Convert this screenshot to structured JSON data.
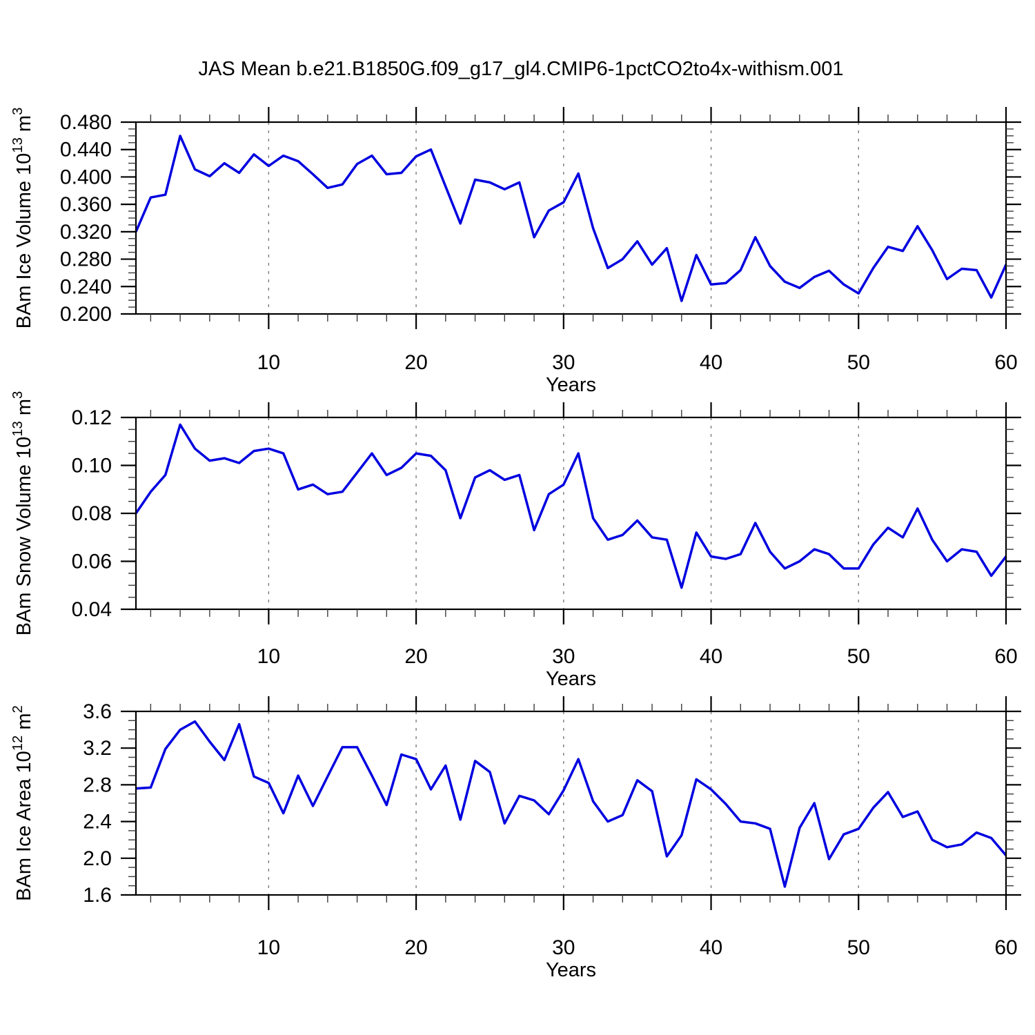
{
  "title": "JAS Mean b.e21.B1850G.f09_g17_gl4.CMIP6-1pctCO2to4x-withism.001",
  "style": {
    "line_color": "#0000e0",
    "grid_color": "#7a7a7a",
    "axis_color": "#000000",
    "minor_tick_color": "#3a3a3a"
  },
  "years": [
    1,
    2,
    3,
    4,
    5,
    6,
    7,
    8,
    9,
    10,
    11,
    12,
    13,
    14,
    15,
    16,
    17,
    18,
    19,
    20,
    21,
    22,
    23,
    24,
    25,
    26,
    27,
    28,
    29,
    30,
    31,
    32,
    33,
    34,
    35,
    36,
    37,
    38,
    39,
    40,
    41,
    42,
    43,
    44,
    45,
    46,
    47,
    48,
    49,
    50,
    51,
    52,
    53,
    54,
    55,
    56,
    57,
    58,
    59,
    60
  ],
  "chart_data": [
    {
      "type": "line",
      "name": "ice-volume",
      "ylabel_parts": [
        {
          "t": "BAm Ice Volume 10",
          "sup": false
        },
        {
          "t": "13",
          "sup": true
        },
        {
          "t": " m",
          "sup": false
        },
        {
          "t": "3",
          "sup": true
        }
      ],
      "xlabel": "Years",
      "xlim": [
        1,
        60
      ],
      "ylim": [
        0.2,
        0.48
      ],
      "y_major_step": 0.04,
      "y_minor_step": 0.01,
      "y_decimals": 3,
      "x_major_ticks": [
        10,
        20,
        30,
        40,
        50,
        60
      ],
      "x_minor_step": 2,
      "grid_x": [
        10,
        20,
        30,
        40,
        50
      ],
      "legend": "none",
      "grid": "vertical-dashed",
      "values": [
        0.32,
        0.37,
        0.374,
        0.46,
        0.411,
        0.401,
        0.42,
        0.406,
        0.433,
        0.416,
        0.431,
        0.423,
        0.404,
        0.384,
        0.389,
        0.419,
        0.431,
        0.404,
        0.406,
        0.43,
        0.44,
        0.386,
        0.332,
        0.396,
        0.392,
        0.382,
        0.392,
        0.312,
        0.351,
        0.363,
        0.405,
        0.325,
        0.267,
        0.28,
        0.306,
        0.272,
        0.296,
        0.219,
        0.286,
        0.243,
        0.245,
        0.264,
        0.312,
        0.27,
        0.247,
        0.238,
        0.254,
        0.263,
        0.243,
        0.23,
        0.267,
        0.298,
        0.292,
        0.328,
        0.293,
        0.251,
        0.266,
        0.264,
        0.224,
        0.272
      ]
    },
    {
      "type": "line",
      "name": "snow-volume",
      "ylabel_parts": [
        {
          "t": "BAm Snow Volume 10",
          "sup": false
        },
        {
          "t": "13",
          "sup": true
        },
        {
          "t": " m",
          "sup": false
        },
        {
          "t": "3",
          "sup": true
        }
      ],
      "xlabel": "Years",
      "xlim": [
        1,
        60
      ],
      "ylim": [
        0.04,
        0.12
      ],
      "y_major_step": 0.02,
      "y_minor_step": 0.005,
      "y_decimals": 2,
      "x_major_ticks": [
        10,
        20,
        30,
        40,
        50,
        60
      ],
      "x_minor_step": 2,
      "grid_x": [
        10,
        20,
        30,
        40,
        50
      ],
      "legend": "none",
      "grid": "vertical-dashed",
      "values": [
        0.08,
        0.089,
        0.096,
        0.117,
        0.107,
        0.102,
        0.103,
        0.101,
        0.106,
        0.107,
        0.105,
        0.09,
        0.092,
        0.088,
        0.089,
        0.097,
        0.105,
        0.096,
        0.099,
        0.105,
        0.104,
        0.098,
        0.078,
        0.095,
        0.098,
        0.094,
        0.096,
        0.073,
        0.088,
        0.092,
        0.105,
        0.078,
        0.069,
        0.071,
        0.077,
        0.07,
        0.069,
        0.049,
        0.072,
        0.062,
        0.061,
        0.063,
        0.076,
        0.064,
        0.057,
        0.06,
        0.065,
        0.063,
        0.057,
        0.057,
        0.067,
        0.074,
        0.07,
        0.082,
        0.069,
        0.06,
        0.065,
        0.064,
        0.054,
        0.062
      ]
    },
    {
      "type": "line",
      "name": "ice-area",
      "ylabel_parts": [
        {
          "t": "BAm Ice Area 10",
          "sup": false
        },
        {
          "t": "12",
          "sup": true
        },
        {
          "t": " m",
          "sup": false
        },
        {
          "t": "2",
          "sup": true
        }
      ],
      "xlabel": "Years",
      "xlim": [
        1,
        60
      ],
      "ylim": [
        1.6,
        3.6
      ],
      "y_major_step": 0.4,
      "y_minor_step": 0.1,
      "y_decimals": 1,
      "x_major_ticks": [
        10,
        20,
        30,
        40,
        50,
        60
      ],
      "x_minor_step": 2,
      "grid_x": [
        10,
        20,
        30,
        40,
        50
      ],
      "legend": "none",
      "grid": "vertical-dashed",
      "values": [
        2.76,
        2.77,
        3.19,
        3.4,
        3.49,
        3.27,
        3.07,
        3.46,
        2.89,
        2.82,
        2.49,
        2.9,
        2.57,
        2.89,
        3.21,
        3.21,
        2.9,
        2.58,
        3.13,
        3.08,
        2.75,
        3.01,
        2.42,
        3.06,
        2.94,
        2.38,
        2.68,
        2.63,
        2.48,
        2.74,
        3.08,
        2.62,
        2.4,
        2.47,
        2.85,
        2.73,
        2.02,
        2.25,
        2.86,
        2.75,
        2.59,
        2.4,
        2.38,
        2.32,
        1.69,
        2.33,
        2.6,
        1.99,
        2.26,
        2.32,
        2.55,
        2.72,
        2.45,
        2.51,
        2.2,
        2.12,
        2.15,
        2.28,
        2.22,
        2.03
      ]
    }
  ]
}
